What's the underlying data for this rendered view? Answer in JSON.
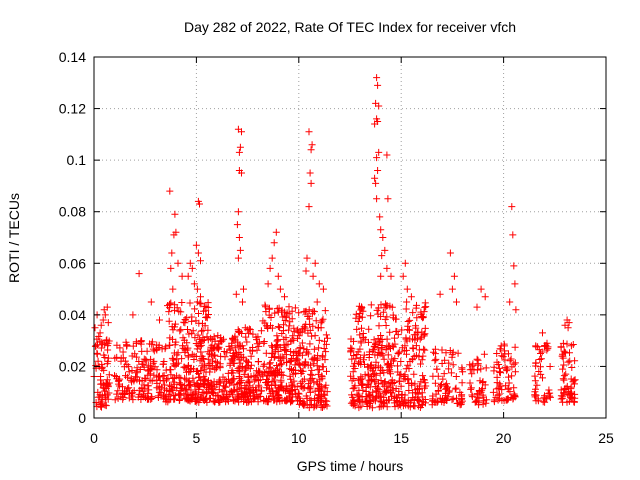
{
  "chart_data": {
    "type": "scatter",
    "title": "Day 282 of 2022, Rate Of TEC Index for receiver vfch",
    "xlabel": "GPS time / hours",
    "ylabel": "ROTI / TECUs",
    "xlim": [
      0,
      25
    ],
    "ylim": [
      0,
      0.14
    ],
    "xticks": [
      0,
      5,
      10,
      15,
      20,
      25
    ],
    "yticks": [
      0,
      0.02,
      0.04,
      0.06,
      0.08,
      0.1,
      0.12,
      0.14
    ],
    "ytick_labels": [
      "0",
      "0.02",
      "0.04",
      "0.06",
      "0.08",
      "0.1",
      "0.12",
      "0.14"
    ],
    "xtick_labels": [
      "0",
      "5",
      "10",
      "15",
      "20",
      "25"
    ],
    "grid": true,
    "marker": "+",
    "marker_color": "#ff0000",
    "series": [
      {
        "name": "ROTI",
        "points": [
          [
            0.05,
            0.035
          ],
          [
            0.1,
            0.028
          ],
          [
            0.15,
            0.04
          ],
          [
            0.2,
            0.022
          ],
          [
            0.3,
            0.033
          ],
          [
            0.35,
            0.036
          ],
          [
            0.45,
            0.038
          ],
          [
            0.55,
            0.04
          ],
          [
            0.6,
            0.03
          ],
          [
            0.7,
            0.037
          ],
          [
            0.5,
            0.042
          ],
          [
            0.65,
            0.043
          ],
          [
            2.2,
            0.056
          ],
          [
            2.3,
            0.03
          ],
          [
            1.9,
            0.04
          ],
          [
            2.8,
            0.045
          ],
          [
            3.2,
            0.038
          ],
          [
            3.7,
            0.088
          ],
          [
            3.95,
            0.079
          ],
          [
            4.0,
            0.072
          ],
          [
            3.9,
            0.071
          ],
          [
            3.8,
            0.064
          ],
          [
            4.1,
            0.06
          ],
          [
            3.75,
            0.058
          ],
          [
            3.85,
            0.05
          ],
          [
            4.3,
            0.055
          ],
          [
            4.6,
            0.055
          ],
          [
            4.7,
            0.06
          ],
          [
            4.8,
            0.058
          ],
          [
            4.9,
            0.052
          ],
          [
            5.05,
            0.05
          ],
          [
            5.2,
            0.047
          ],
          [
            5.1,
            0.084
          ],
          [
            5.15,
            0.083
          ],
          [
            5.0,
            0.067
          ],
          [
            5.1,
            0.064
          ],
          [
            5.2,
            0.061
          ],
          [
            5.05,
            0.045
          ],
          [
            7.05,
            0.112
          ],
          [
            7.2,
            0.111
          ],
          [
            7.15,
            0.105
          ],
          [
            7.1,
            0.103
          ],
          [
            7.1,
            0.096
          ],
          [
            7.2,
            0.095
          ],
          [
            7.05,
            0.08
          ],
          [
            7.0,
            0.075
          ],
          [
            7.1,
            0.07
          ],
          [
            7.15,
            0.065
          ],
          [
            7.05,
            0.062
          ],
          [
            6.95,
            0.048
          ],
          [
            7.3,
            0.05
          ],
          [
            7.25,
            0.045
          ],
          [
            8.9,
            0.072
          ],
          [
            8.8,
            0.068
          ],
          [
            8.7,
            0.062
          ],
          [
            8.6,
            0.058
          ],
          [
            9.0,
            0.055
          ],
          [
            8.5,
            0.052
          ],
          [
            9.1,
            0.05
          ],
          [
            9.3,
            0.047
          ],
          [
            10.5,
            0.111
          ],
          [
            10.65,
            0.106
          ],
          [
            10.6,
            0.104
          ],
          [
            10.55,
            0.095
          ],
          [
            10.6,
            0.091
          ],
          [
            10.5,
            0.082
          ],
          [
            10.4,
            0.062
          ],
          [
            10.35,
            0.057
          ],
          [
            10.7,
            0.055
          ],
          [
            10.8,
            0.06
          ],
          [
            11.0,
            0.052
          ],
          [
            11.2,
            0.05
          ],
          [
            10.9,
            0.045
          ],
          [
            13.8,
            0.132
          ],
          [
            13.85,
            0.129
          ],
          [
            13.75,
            0.122
          ],
          [
            13.9,
            0.121
          ],
          [
            13.8,
            0.116
          ],
          [
            13.85,
            0.115
          ],
          [
            13.7,
            0.114
          ],
          [
            13.9,
            0.103
          ],
          [
            13.8,
            0.101
          ],
          [
            13.85,
            0.096
          ],
          [
            13.7,
            0.093
          ],
          [
            13.75,
            0.091
          ],
          [
            13.8,
            0.085
          ],
          [
            13.95,
            0.078
          ],
          [
            14.3,
            0.102
          ],
          [
            14.35,
            0.085
          ],
          [
            14.0,
            0.073
          ],
          [
            14.1,
            0.07
          ],
          [
            14.2,
            0.065
          ],
          [
            14.05,
            0.063
          ],
          [
            14.3,
            0.058
          ],
          [
            14.5,
            0.055
          ],
          [
            14.0,
            0.055
          ],
          [
            15.2,
            0.06
          ],
          [
            15.1,
            0.055
          ],
          [
            15.3,
            0.05
          ],
          [
            15.5,
            0.047
          ],
          [
            17.4,
            0.064
          ],
          [
            17.6,
            0.055
          ],
          [
            17.5,
            0.05
          ],
          [
            16.9,
            0.048
          ],
          [
            17.7,
            0.045
          ],
          [
            18.9,
            0.05
          ],
          [
            19.1,
            0.047
          ],
          [
            18.7,
            0.043
          ],
          [
            20.4,
            0.082
          ],
          [
            20.45,
            0.071
          ],
          [
            20.5,
            0.059
          ],
          [
            20.55,
            0.052
          ],
          [
            20.3,
            0.045
          ],
          [
            20.6,
            0.042
          ],
          [
            21.9,
            0.033
          ],
          [
            22.0,
            0.028
          ],
          [
            21.8,
            0.025
          ],
          [
            23.1,
            0.038
          ],
          [
            23.2,
            0.037
          ],
          [
            23.0,
            0.036
          ],
          [
            23.15,
            0.035
          ]
        ],
        "clusters": [
          {
            "x_range": [
              0.0,
              0.75
            ],
            "y_range": [
              0.004,
              0.032
            ],
            "n": 70
          },
          {
            "x_range": [
              1.0,
              3.5
            ],
            "y_range": [
              0.007,
              0.03
            ],
            "n": 170
          },
          {
            "x_range": [
              3.5,
              5.6
            ],
            "y_range": [
              0.006,
              0.045
            ],
            "n": 260
          },
          {
            "x_range": [
              5.6,
              7.0
            ],
            "y_range": [
              0.006,
              0.032
            ],
            "n": 150
          },
          {
            "x_range": [
              7.0,
              8.2
            ],
            "y_range": [
              0.006,
              0.035
            ],
            "n": 140
          },
          {
            "x_range": [
              8.2,
              10.0
            ],
            "y_range": [
              0.006,
              0.045
            ],
            "n": 230
          },
          {
            "x_range": [
              10.0,
              11.4
            ],
            "y_range": [
              0.004,
              0.042
            ],
            "n": 170
          },
          {
            "x_range": [
              12.5,
              16.2
            ],
            "y_range": [
              0.004,
              0.045
            ],
            "n": 420
          },
          {
            "x_range": [
              16.5,
              18.0
            ],
            "y_range": [
              0.005,
              0.028
            ],
            "n": 80
          },
          {
            "x_range": [
              18.3,
              19.2
            ],
            "y_range": [
              0.005,
              0.025
            ],
            "n": 45
          },
          {
            "x_range": [
              19.5,
              20.6
            ],
            "y_range": [
              0.006,
              0.03
            ],
            "n": 70
          },
          {
            "x_range": [
              21.5,
              22.3
            ],
            "y_range": [
              0.006,
              0.03
            ],
            "n": 45
          },
          {
            "x_range": [
              22.8,
              23.5
            ],
            "y_range": [
              0.006,
              0.03
            ],
            "n": 60
          }
        ]
      }
    ]
  }
}
